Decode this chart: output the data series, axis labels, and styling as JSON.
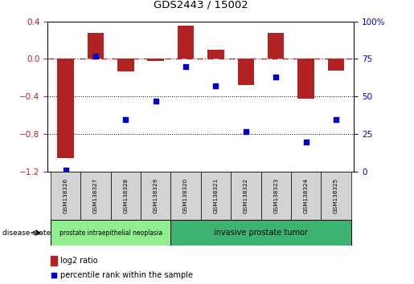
{
  "title": "GDS2443 / 15002",
  "samples": [
    "GSM138326",
    "GSM138327",
    "GSM138328",
    "GSM138329",
    "GSM138320",
    "GSM138321",
    "GSM138322",
    "GSM138323",
    "GSM138324",
    "GSM138325"
  ],
  "log2_ratio": [
    -1.05,
    0.28,
    -0.13,
    -0.02,
    0.35,
    0.1,
    -0.28,
    0.28,
    -0.42,
    -0.12
  ],
  "percentile_rank": [
    1,
    77,
    35,
    47,
    70,
    57,
    27,
    63,
    20,
    35
  ],
  "ylim_left": [
    -1.2,
    0.4
  ],
  "ylim_right": [
    0,
    100
  ],
  "yticks_left": [
    -1.2,
    -0.8,
    -0.4,
    0.0,
    0.4
  ],
  "yticks_right": [
    0,
    25,
    50,
    75,
    100
  ],
  "bar_color": "#b22222",
  "dot_color": "#0000cd",
  "hline_color": "#b22222",
  "dotted_lines": [
    -0.4,
    -0.8
  ],
  "group1_label": "prostate intraepithelial neoplasia",
  "group2_label": "invasive prostate tumor",
  "group1_count": 4,
  "disease_state_label": "disease state",
  "legend_bar_label": "log2 ratio",
  "legend_dot_label": "percentile rank within the sample",
  "group1_color": "#90ee90",
  "group2_color": "#3cb371",
  "label_box_color": "#d3d3d3",
  "bg_color": "#ffffff",
  "right_axis_color": "#0000cd",
  "left_axis_color": "#b22222"
}
